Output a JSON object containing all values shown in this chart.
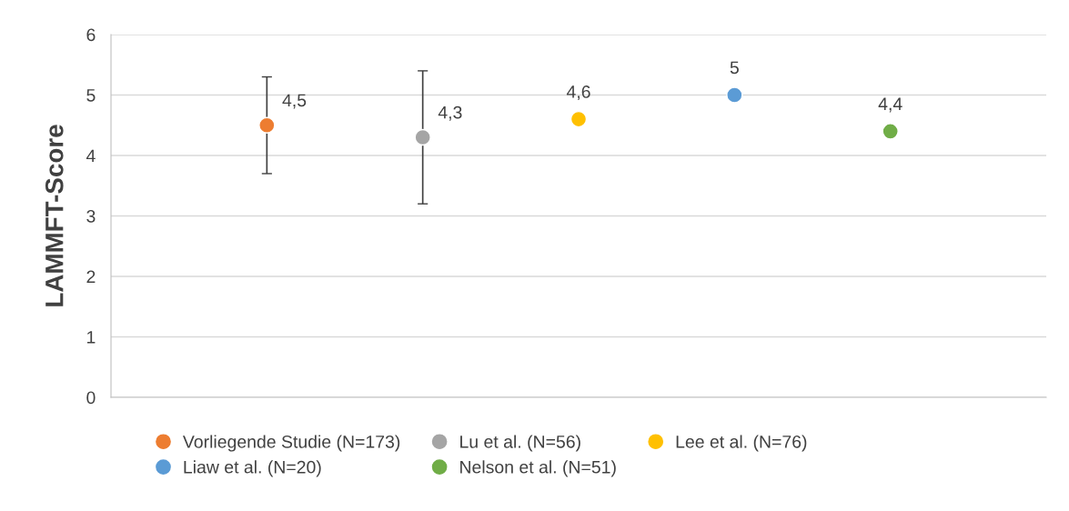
{
  "chart_data": {
    "type": "scatter",
    "ylabel": "LAMMFT-Score",
    "categories": [
      null,
      null,
      null,
      null,
      null
    ],
    "ylim": [
      0,
      6
    ],
    "yticks": [
      0,
      1,
      2,
      3,
      4,
      5,
      6
    ],
    "grid": "y",
    "legend": "bottom",
    "marker": "circle",
    "series": [
      {
        "name": "Vorliegende Studie (N=173)",
        "color": "#ed7d31",
        "values": [
          4.5,
          null,
          null,
          null,
          null
        ],
        "value_labels": [
          "4,5",
          null,
          null,
          null,
          null
        ],
        "errors": [
          [
            3.7,
            5.3
          ],
          null,
          null,
          null,
          null
        ]
      },
      {
        "name": "Lu et al. (N=56)",
        "color": "#a5a5a5",
        "values": [
          null,
          4.3,
          null,
          null,
          null
        ],
        "value_labels": [
          null,
          "4,3",
          null,
          null,
          null
        ],
        "errors": [
          null,
          [
            3.2,
            5.4
          ],
          null,
          null,
          null
        ]
      },
      {
        "name": "Lee et al. (N=76)",
        "color": "#ffc000",
        "values": [
          null,
          null,
          4.6,
          null,
          null
        ],
        "value_labels": [
          null,
          null,
          "4,6",
          null,
          null
        ]
      },
      {
        "name": "Liaw et al. (N=20)",
        "color": "#5b9bd5",
        "values": [
          null,
          null,
          null,
          5,
          null
        ],
        "value_labels": [
          null,
          null,
          null,
          "5",
          null
        ]
      },
      {
        "name": "Nelson et al. (N=51)",
        "color": "#70ad47",
        "values": [
          null,
          null,
          null,
          null,
          4.4
        ],
        "value_labels": [
          null,
          null,
          null,
          null,
          "4,4"
        ]
      }
    ]
  }
}
